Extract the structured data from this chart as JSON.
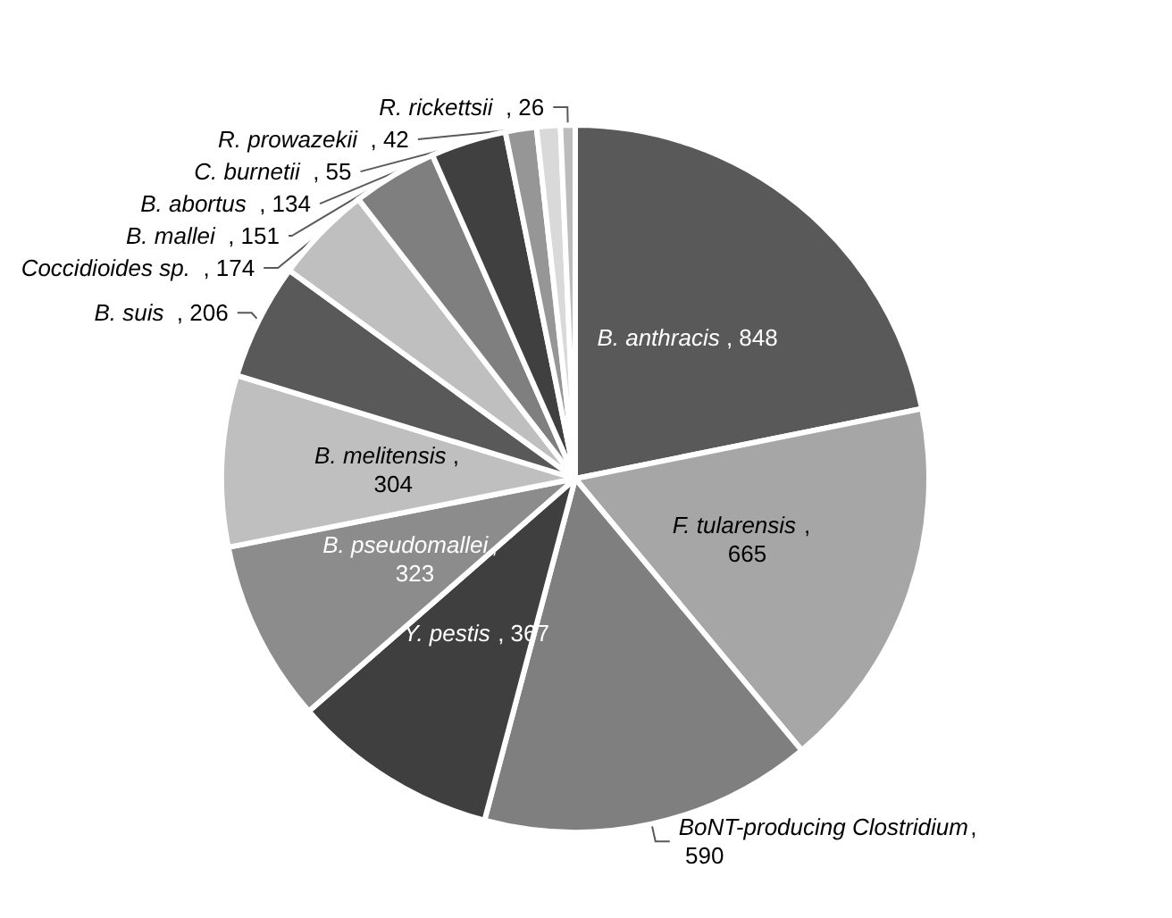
{
  "chart_data": {
    "type": "pie",
    "categories": [
      "B. anthracis",
      "F. tularensis",
      "BoNT-producing Clostridium",
      "Y. pestis",
      "B. pseudomallei",
      "B. melitensis",
      "B. suis",
      "Coccidioides sp.",
      "B. mallei",
      "B. abortus",
      "C. burnetii",
      "R. prowazekii",
      "R. rickettsii"
    ],
    "values": [
      848,
      665,
      590,
      367,
      323,
      304,
      206,
      174,
      151,
      134,
      55,
      42,
      26
    ],
    "colors": [
      "#595959",
      "#a6a6a6",
      "#7f7f7f",
      "#3f3f3f",
      "#8c8c8c",
      "#bfbfbf",
      "#595959",
      "#bfbfbf",
      "#7f7f7f",
      "#404040",
      "#969696",
      "#d9d9d9",
      "#bcbcbc"
    ],
    "value_labels": [
      ", 848",
      ", 665",
      ", 590",
      ", 367",
      ", 323",
      ", 304",
      ", 206",
      ", 174",
      ", 151",
      ", 134",
      ", 55",
      ", 42",
      ", 26"
    ],
    "legend": false
  }
}
